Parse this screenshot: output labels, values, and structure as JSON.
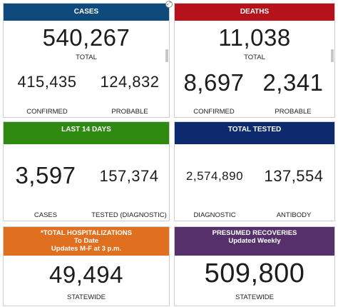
{
  "colors": {
    "cases": "#0e4a7c",
    "deaths": "#b5121b",
    "last14": "#2f8a12",
    "tested": "#0d2a6e",
    "hosp": "#e0701f",
    "recov": "#55306b"
  },
  "cases": {
    "header": "CASES",
    "total": "540,267",
    "total_label": "TOTAL",
    "confirmed": "415,435",
    "confirmed_label": "CONFIRMED",
    "probable": "124,832",
    "probable_label": "PROBABLE"
  },
  "deaths": {
    "header": "DEATHS",
    "total": "11,038",
    "total_label": "TOTAL",
    "confirmed": "8,697",
    "confirmed_label": "CONFIRMED",
    "probable": "2,341",
    "probable_label": "PROBABLE"
  },
  "last14": {
    "header": "LAST 14 DAYS",
    "cases": "3,597",
    "cases_label": "CASES",
    "tested": "157,374",
    "tested_label": "TESTED (DIAGNOSTIC)"
  },
  "tested": {
    "header": "TOTAL TESTED",
    "diagnostic": "2,574,890",
    "diagnostic_label": "DIAGNOSTIC",
    "antibody": "137,554",
    "antibody_label": "ANTIBODY"
  },
  "hosp": {
    "header_line1": "*TOTAL HOSPITALIZATIONS",
    "header_line2": "To Date",
    "header_line3": "Updates M-F at 3 p.m.",
    "value": "49,494",
    "label": "STATEWIDE"
  },
  "recov": {
    "header_line1": "PRESUMED RECOVERIES",
    "header_line2": "Updated Weekly",
    "value": "509,800",
    "label": "STATEWIDE"
  },
  "icons": {
    "expand": "expand-icon"
  }
}
